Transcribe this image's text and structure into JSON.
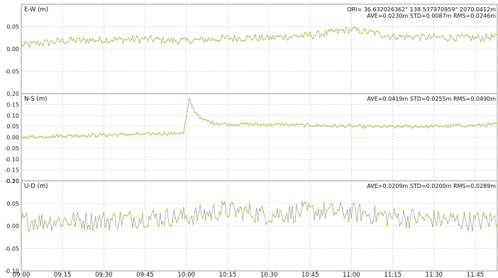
{
  "chart_data": {
    "type": "line",
    "x_ticks": [
      "09:00",
      "09:15",
      "09:30",
      "09:45",
      "10:00",
      "10:15",
      "10:30",
      "10:45",
      "11:00",
      "11:15",
      "11:30",
      "11:45"
    ],
    "x_range_minutes": [
      0,
      173
    ],
    "grid": true,
    "marker_color": "#b4dc00",
    "line_color": "#9a9a9a",
    "panels": [
      {
        "label": "E-W (m)",
        "origin_text": "ORI= 36.632026362° 138.537970959° 2070.0412m",
        "stats_text": "AVE=0.0230m STD=0.0087m RMS=0.0246m",
        "ylim": [
          -0.1,
          0.1
        ],
        "y_ticks": [
          "0.05",
          "0.00",
          "-0.05"
        ],
        "y_tick_values": [
          0.05,
          0.0,
          -0.05
        ],
        "series": {
          "x": [
            0,
            15,
            30,
            45,
            60,
            75,
            90,
            105,
            120,
            135,
            150,
            165,
            173
          ],
          "y": [
            0.008,
            0.018,
            0.02,
            0.022,
            0.018,
            0.024,
            0.025,
            0.03,
            0.044,
            0.028,
            0.026,
            0.024,
            0.027
          ],
          "noise": 0.008
        }
      },
      {
        "label": "N-S (m)",
        "stats_text": "AVE=0.0419m STD=0.0255m RMS=0.0490m",
        "ylim": [
          -0.2,
          0.2
        ],
        "y_ticks": [
          "0.20",
          "0.15",
          "0.10",
          "0.05",
          "0.00",
          "-0.05",
          "-0.10",
          "-0.15",
          "-0.20"
        ],
        "y_tick_values": [
          0.2,
          0.15,
          0.1,
          0.05,
          0.0,
          -0.05,
          -0.1,
          -0.15,
          -0.2
        ],
        "series": {
          "x": [
            0,
            15,
            30,
            45,
            59,
            61,
            63,
            66,
            70,
            75,
            90,
            105,
            120,
            135,
            150,
            165,
            173
          ],
          "y": [
            0.0,
            0.006,
            0.01,
            0.014,
            0.02,
            0.17,
            0.12,
            0.08,
            0.065,
            0.06,
            0.058,
            0.055,
            0.05,
            0.048,
            0.05,
            0.055,
            0.06
          ],
          "noise": 0.007
        }
      },
      {
        "label": "U-D (m)",
        "stats_text": "AVE=0.0209m STD=0.0200m RMS=0.0289m",
        "ylim": [
          -0.1,
          0.1
        ],
        "y_ticks": [
          "0.10",
          "0.05",
          "0.00",
          "-0.05",
          "-0.10"
        ],
        "y_tick_values": [
          0.1,
          0.05,
          0.0,
          -0.05,
          -0.1
        ],
        "series": {
          "x": [
            0,
            15,
            30,
            45,
            60,
            75,
            90,
            105,
            120,
            135,
            150,
            165,
            173
          ],
          "y": [
            0.01,
            0.012,
            0.012,
            0.018,
            0.02,
            0.035,
            0.025,
            0.032,
            0.03,
            0.02,
            0.015,
            0.01,
            0.015
          ],
          "noise": 0.022
        }
      }
    ]
  }
}
